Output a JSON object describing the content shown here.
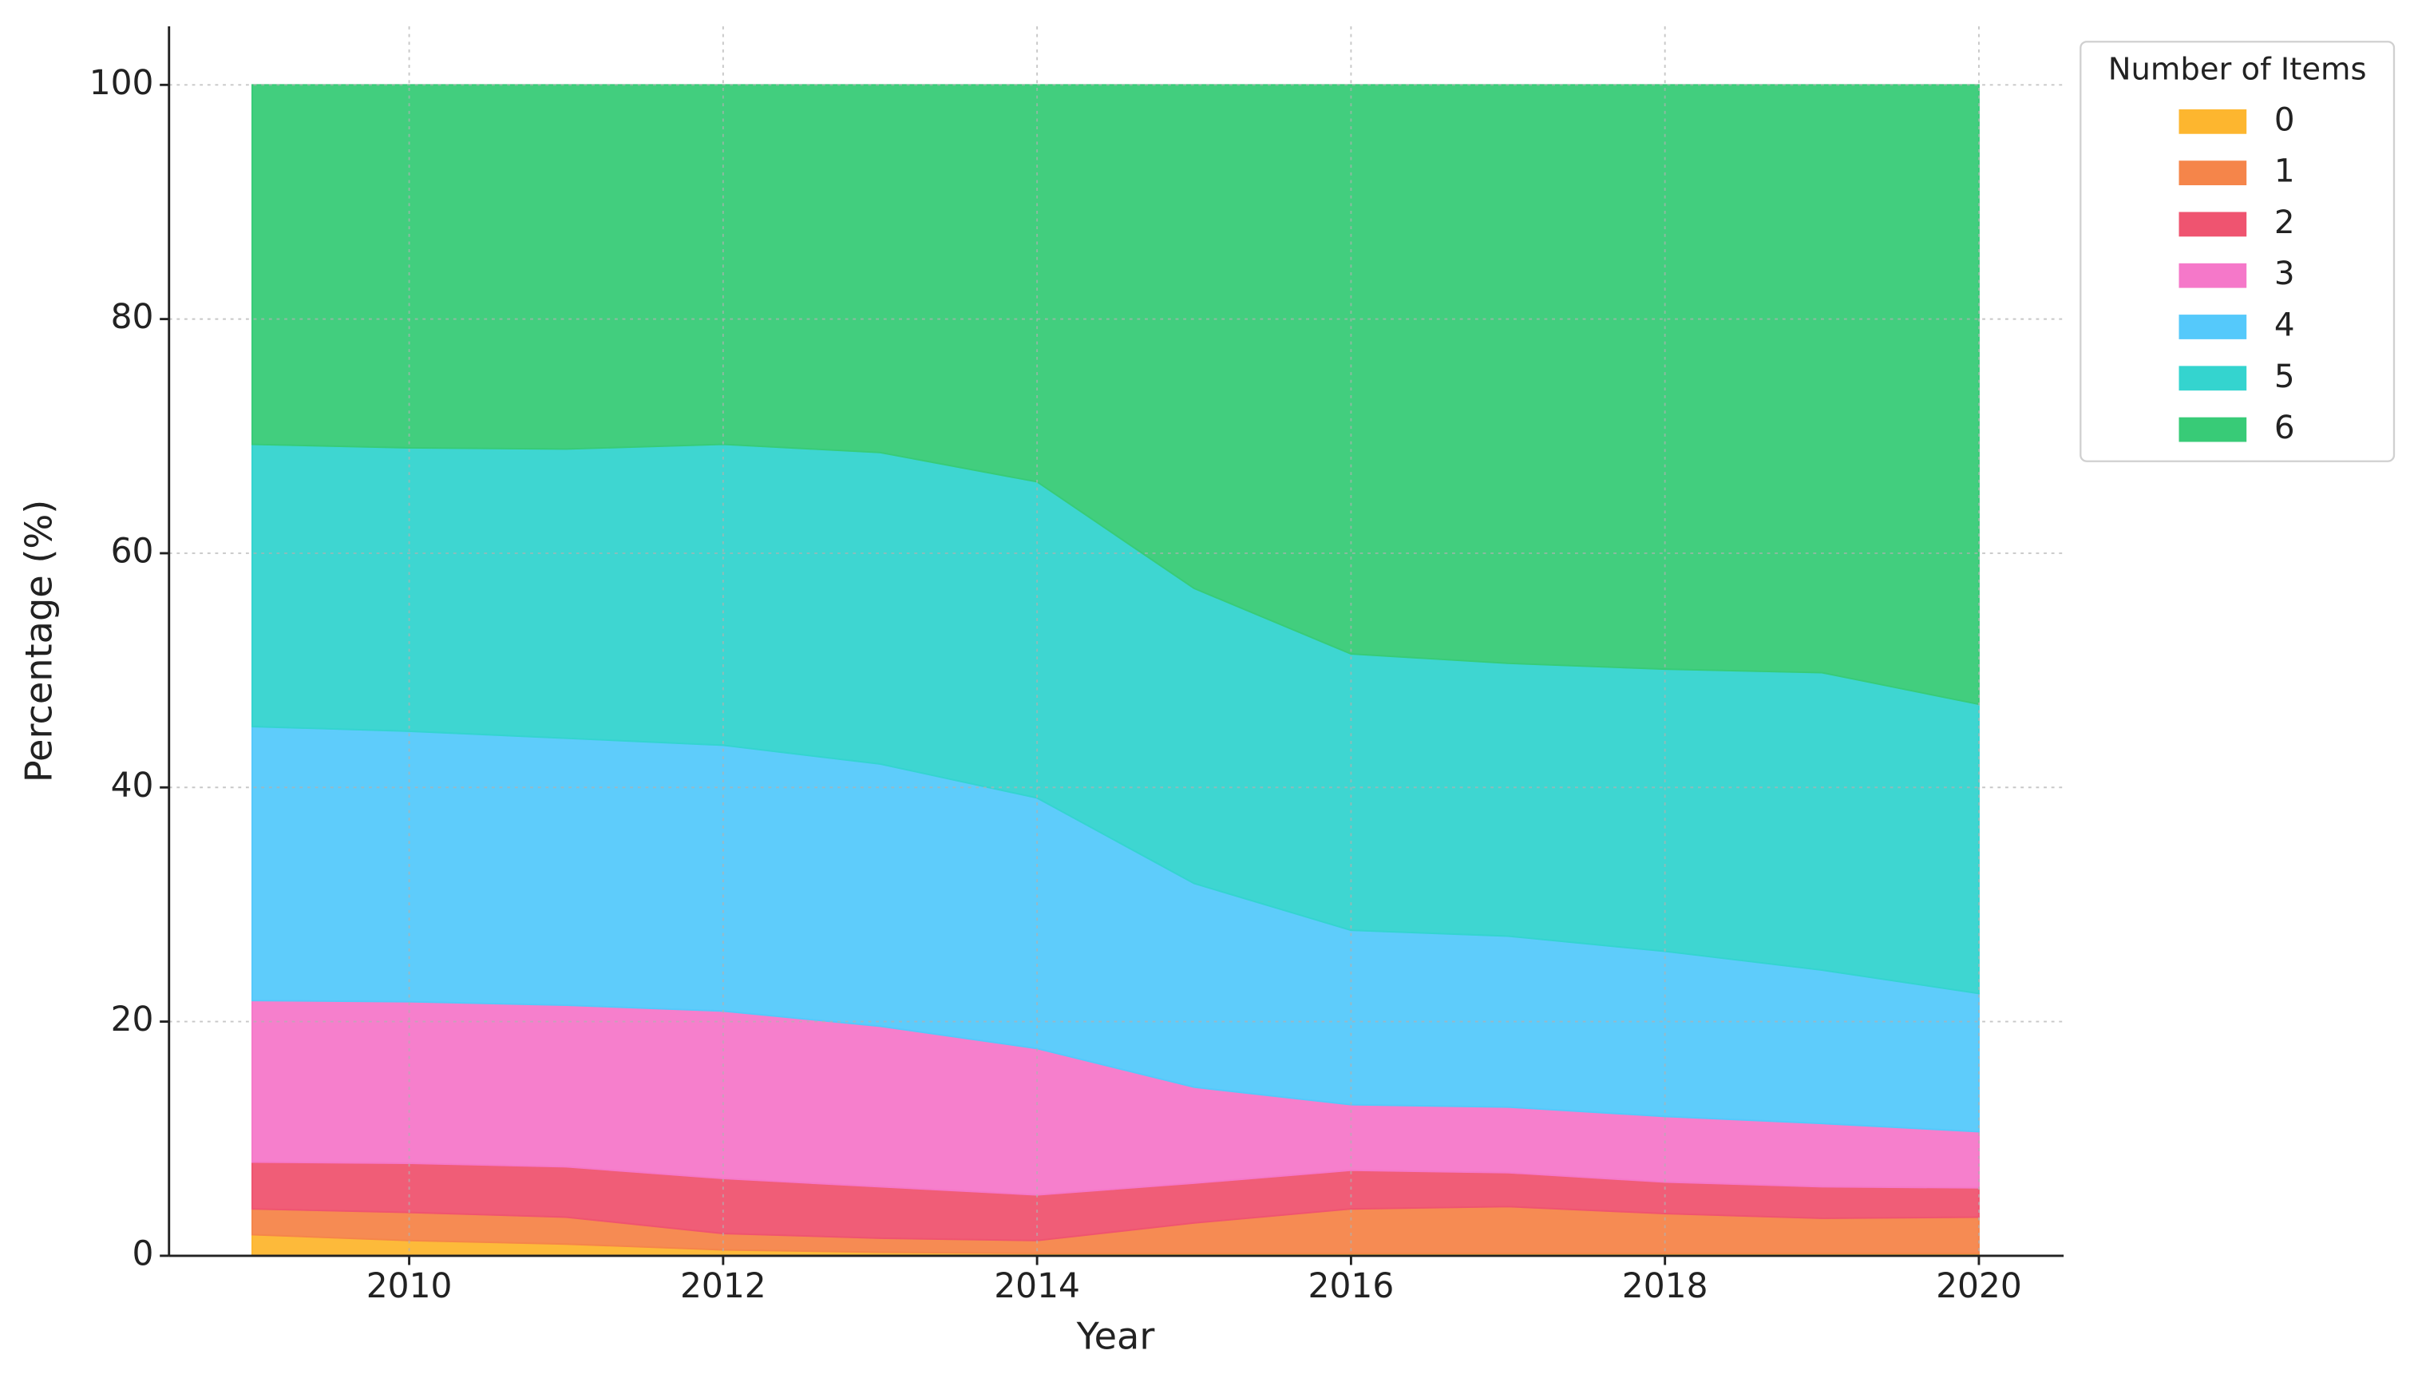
{
  "chart_data": {
    "type": "stacked-area",
    "x_label": "Year",
    "y_label": "Percentage (%)",
    "x": [
      2009,
      2010,
      2011,
      2012,
      2013,
      2014,
      2015,
      2016,
      2017,
      2018,
      2019,
      2020
    ],
    "series": [
      {
        "name": "0",
        "color": "#fdb62f",
        "values": [
          1.8,
          1.3,
          1.0,
          0.5,
          0.3,
          0.2,
          0.2,
          0.2,
          0.2,
          0.2,
          0.2,
          0.2
        ]
      },
      {
        "name": "1",
        "color": "#f5854a",
        "values": [
          2.2,
          2.4,
          2.3,
          1.4,
          1.2,
          1.1,
          2.6,
          3.8,
          4.0,
          3.4,
          3.0,
          3.1
        ]
      },
      {
        "name": "2",
        "color": "#ef5470",
        "values": [
          4.0,
          4.2,
          4.3,
          4.7,
          4.4,
          3.9,
          3.4,
          3.3,
          2.9,
          2.7,
          2.7,
          2.5
        ]
      },
      {
        "name": "3",
        "color": "#f578c9",
        "values": [
          13.8,
          13.8,
          13.8,
          14.3,
          13.7,
          12.5,
          8.2,
          5.6,
          5.6,
          5.6,
          5.4,
          4.8
        ]
      },
      {
        "name": "4",
        "color": "#55c9fb",
        "values": [
          23.4,
          23.1,
          22.8,
          22.7,
          22.4,
          21.4,
          17.4,
          14.9,
          14.6,
          14.1,
          13.1,
          11.8
        ]
      },
      {
        "name": "5",
        "color": "#34d4cf",
        "values": [
          24.1,
          24.2,
          24.7,
          25.7,
          26.6,
          27.0,
          25.2,
          23.6,
          23.3,
          24.1,
          25.4,
          24.7
        ]
      },
      {
        "name": "6",
        "color": "#38cb77",
        "values": [
          30.7,
          31.0,
          31.1,
          30.7,
          31.4,
          33.9,
          43.0,
          48.6,
          49.4,
          49.9,
          50.2,
          52.9
        ]
      }
    ],
    "legend_title": "Number of Items",
    "legend": "upper right",
    "xlim": [
      2008.47,
      2020.54
    ],
    "xticks": [
      2010,
      2012,
      2014,
      2016,
      2018,
      2020
    ],
    "ylim": [
      0,
      105
    ],
    "yticks": [
      0,
      20,
      40,
      60,
      80,
      100
    ],
    "grid": true
  }
}
